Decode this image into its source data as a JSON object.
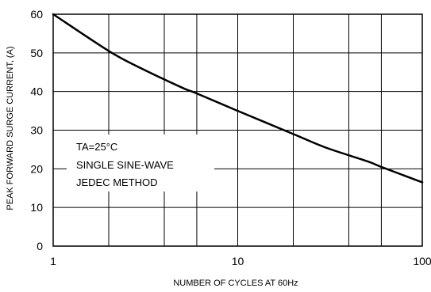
{
  "chart_data": {
    "type": "line",
    "xlabel": "NUMBER OF CYCLES AT 60Hz",
    "ylabel": "PEAK FORWARD SURGE CURRENT, (A)",
    "x_scale": "log",
    "xlim": [
      1,
      100
    ],
    "ylim": [
      0,
      60
    ],
    "x_ticks": [
      1,
      10,
      100
    ],
    "x_tick_labels": [
      "1",
      "10",
      "100"
    ],
    "y_ticks": [
      0,
      10,
      20,
      30,
      40,
      50,
      60
    ],
    "y_tick_labels": [
      "0",
      "10",
      "20",
      "30",
      "40",
      "50",
      "60"
    ],
    "grid": true,
    "annotations": [
      "TA=25°C",
      "SINGLE SINE-WAVE",
      "JEDEC METHOD"
    ],
    "series": [
      {
        "x": [
          1,
          2,
          3,
          5,
          6,
          10,
          20,
          30,
          50,
          60,
          100
        ],
        "y": [
          60,
          50.5,
          46,
          41,
          39.5,
          35,
          29,
          25.5,
          22,
          20.5,
          16.5
        ]
      }
    ]
  }
}
